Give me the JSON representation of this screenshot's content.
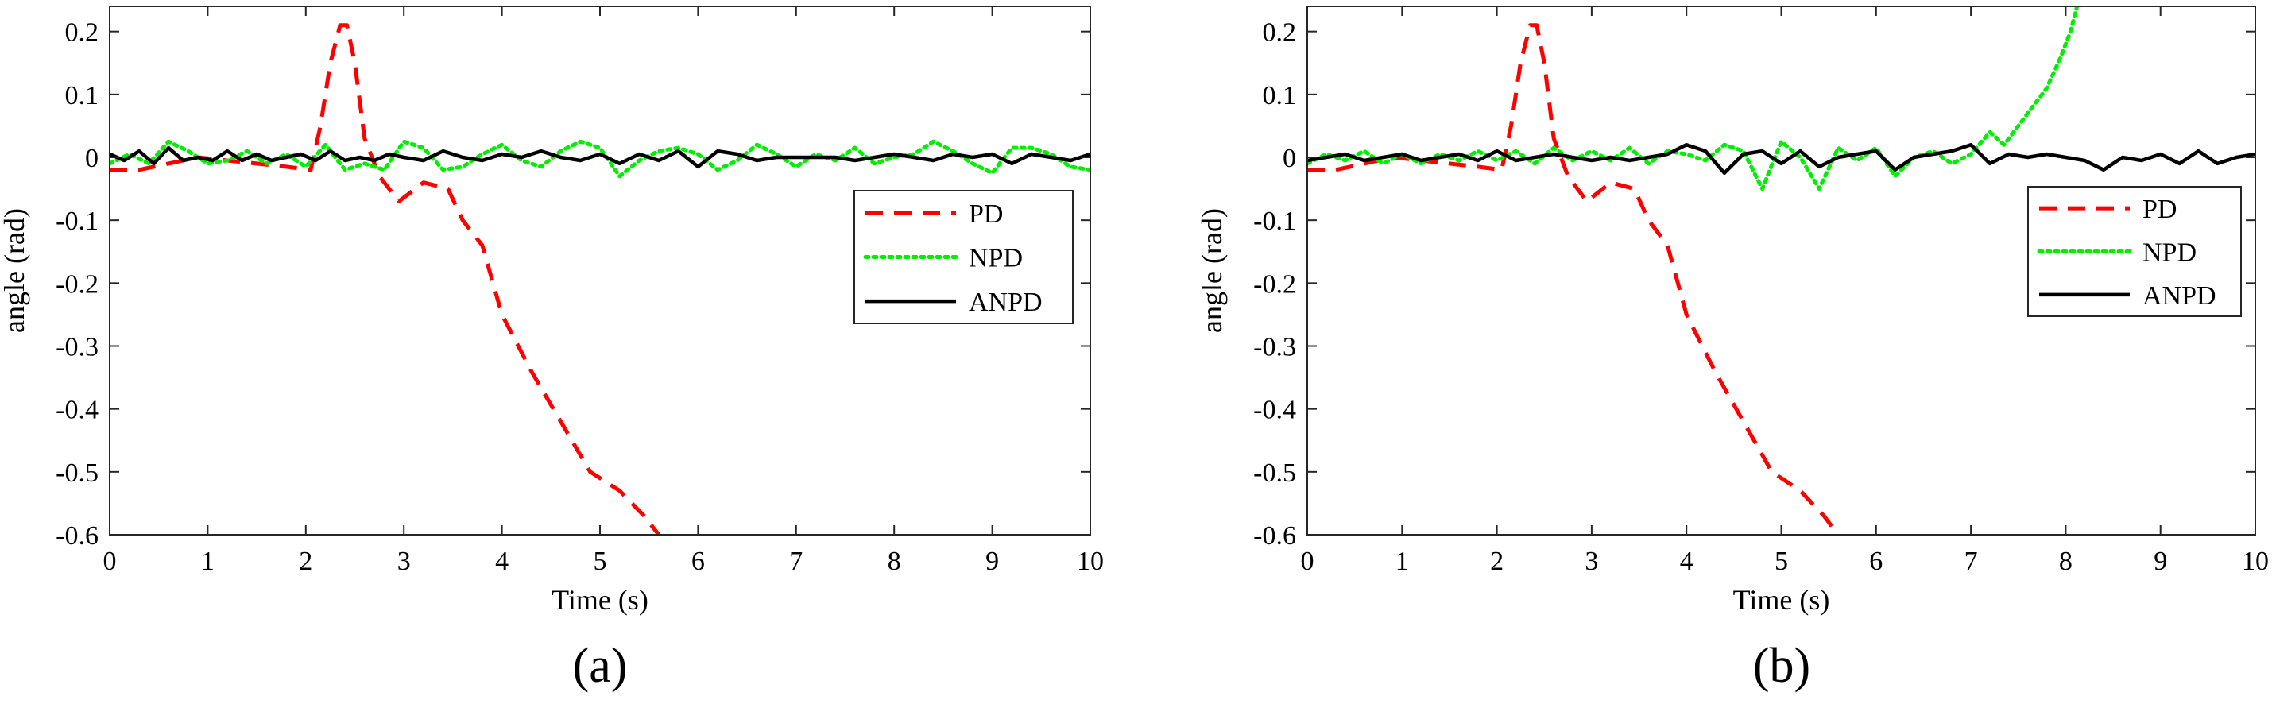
{
  "chart_data": [
    {
      "type": "line",
      "panel_label": "(a)",
      "xlabel": "Time (s)",
      "ylabel": "angle (rad)",
      "xlim": [
        0,
        10
      ],
      "ylim": [
        -0.6,
        0.24
      ],
      "xticks": [
        "0",
        "1",
        "2",
        "3",
        "4",
        "5",
        "6",
        "7",
        "8",
        "9",
        "10"
      ],
      "yticks": [
        "0.2",
        "0.1",
        "0",
        "-0.1",
        "-0.2",
        "-0.3",
        "-0.4",
        "-0.5",
        "-0.6"
      ],
      "grid": false,
      "legend_position": "right",
      "series": [
        {
          "name": "PD",
          "color": "#ff0000",
          "style": "dashed",
          "x": [
            0,
            0.3,
            0.6,
            0.9,
            1.2,
            1.5,
            1.8,
            2.05,
            2.15,
            2.25,
            2.35,
            2.42,
            2.5,
            2.6,
            2.75,
            2.95,
            3.2,
            3.45,
            3.6,
            3.8,
            4.0,
            4.3,
            4.6,
            4.9,
            5.2,
            5.45,
            5.6
          ],
          "y": [
            -0.02,
            -0.02,
            -0.01,
            0,
            -0.005,
            -0.01,
            -0.015,
            -0.02,
            0.05,
            0.15,
            0.21,
            0.21,
            0.15,
            0.03,
            -0.03,
            -0.07,
            -0.04,
            -0.05,
            -0.1,
            -0.14,
            -0.25,
            -0.34,
            -0.42,
            -0.5,
            -0.53,
            -0.57,
            -0.6
          ]
        },
        {
          "name": "NPD",
          "color": "#00ee00",
          "style": "dotted",
          "x": [
            0,
            0.2,
            0.4,
            0.6,
            0.8,
            1.0,
            1.2,
            1.4,
            1.6,
            1.8,
            2.0,
            2.2,
            2.4,
            2.6,
            2.8,
            3.0,
            3.2,
            3.4,
            3.6,
            3.8,
            4.0,
            4.2,
            4.4,
            4.6,
            4.8,
            5.0,
            5.2,
            5.4,
            5.6,
            5.8,
            6.0,
            6.2,
            6.4,
            6.6,
            6.8,
            7.0,
            7.2,
            7.4,
            7.6,
            7.8,
            8.0,
            8.2,
            8.4,
            8.6,
            8.8,
            9.0,
            9.2,
            9.4,
            9.6,
            9.8,
            10.0
          ],
          "y": [
            -0.01,
            0.005,
            -0.01,
            0.025,
            0.01,
            -0.01,
            -0.005,
            0.01,
            -0.01,
            0.005,
            -0.015,
            0.02,
            -0.02,
            -0.01,
            -0.02,
            0.025,
            0.015,
            -0.02,
            -0.015,
            0.005,
            0.02,
            -0.005,
            -0.015,
            0.01,
            0.025,
            0.015,
            -0.03,
            -0.005,
            0.01,
            0.015,
            0.005,
            -0.02,
            -0.005,
            0.02,
            0.005,
            -0.015,
            0.005,
            -0.005,
            0.015,
            -0.01,
            0.0,
            0.005,
            0.025,
            0.01,
            -0.01,
            -0.025,
            0.015,
            0.015,
            0.005,
            -0.015,
            -0.02
          ]
        },
        {
          "name": "ANPD",
          "color": "#000000",
          "style": "solid",
          "x": [
            0,
            0.15,
            0.3,
            0.45,
            0.6,
            0.75,
            0.9,
            1.05,
            1.2,
            1.35,
            1.5,
            1.65,
            1.8,
            1.95,
            2.1,
            2.25,
            2.4,
            2.55,
            2.7,
            2.85,
            3.0,
            3.2,
            3.4,
            3.6,
            3.8,
            4.0,
            4.2,
            4.4,
            4.6,
            4.8,
            5.0,
            5.2,
            5.4,
            5.6,
            5.8,
            6.0,
            6.2,
            6.4,
            6.6,
            6.8,
            7.0,
            7.2,
            7.4,
            7.6,
            7.8,
            8.0,
            8.2,
            8.4,
            8.6,
            8.8,
            9.0,
            9.2,
            9.4,
            9.6,
            9.8,
            10.0
          ],
          "y": [
            0.005,
            -0.005,
            0.01,
            -0.01,
            0.015,
            -0.005,
            0.0,
            -0.005,
            0.01,
            -0.005,
            0.005,
            -0.005,
            0.0,
            0.005,
            -0.005,
            0.01,
            -0.005,
            0.0,
            -0.005,
            0.005,
            0.0,
            -0.005,
            0.01,
            0.0,
            -0.005,
            0.005,
            0.0,
            0.01,
            0.0,
            -0.005,
            0.005,
            -0.01,
            0.005,
            -0.005,
            0.01,
            -0.015,
            0.01,
            0.005,
            -0.005,
            0.0,
            0.0,
            0.0,
            0.0,
            -0.005,
            0.0,
            0.005,
            0.0,
            -0.005,
            0.005,
            0.0,
            0.005,
            -0.01,
            0.005,
            0.0,
            -0.005,
            0.005
          ]
        }
      ]
    },
    {
      "type": "line",
      "panel_label": "(b)",
      "xlabel": "Time (s)",
      "ylabel": "angle (rad)",
      "xlim": [
        0,
        10
      ],
      "ylim": [
        -0.6,
        0.24
      ],
      "xticks": [
        "0",
        "1",
        "2",
        "3",
        "4",
        "5",
        "6",
        "7",
        "8",
        "9",
        "10"
      ],
      "yticks": [
        "0.2",
        "0.1",
        "0",
        "-0.1",
        "-0.2",
        "-0.3",
        "-0.4",
        "-0.5",
        "-0.6"
      ],
      "grid": false,
      "legend_position": "right",
      "series": [
        {
          "name": "PD",
          "color": "#ff0000",
          "style": "dashed",
          "x": [
            0,
            0.3,
            0.6,
            0.9,
            1.2,
            1.5,
            1.8,
            2.05,
            2.15,
            2.25,
            2.35,
            2.42,
            2.5,
            2.6,
            2.75,
            2.95,
            3.2,
            3.45,
            3.6,
            3.8,
            4.0,
            4.3,
            4.6,
            4.9,
            5.2,
            5.45,
            5.6
          ],
          "y": [
            -0.02,
            -0.02,
            -0.01,
            0,
            -0.005,
            -0.01,
            -0.015,
            -0.02,
            0.05,
            0.15,
            0.21,
            0.21,
            0.15,
            0.03,
            -0.03,
            -0.07,
            -0.04,
            -0.05,
            -0.1,
            -0.14,
            -0.25,
            -0.34,
            -0.42,
            -0.5,
            -0.53,
            -0.57,
            -0.6
          ]
        },
        {
          "name": "NPD",
          "color": "#00ee00",
          "style": "dotted",
          "x": [
            0,
            0.2,
            0.4,
            0.6,
            0.8,
            1.0,
            1.2,
            1.4,
            1.6,
            1.8,
            2.0,
            2.2,
            2.4,
            2.6,
            2.8,
            3.0,
            3.2,
            3.4,
            3.6,
            3.8,
            4.0,
            4.2,
            4.4,
            4.6,
            4.8,
            5.0,
            5.2,
            5.4,
            5.6,
            5.8,
            6.0,
            6.2,
            6.4,
            6.6,
            6.8,
            7.0,
            7.2,
            7.35,
            7.5,
            7.65,
            7.8,
            7.95,
            8.05,
            8.12
          ],
          "y": [
            -0.01,
            0.005,
            -0.005,
            0.01,
            -0.01,
            0.005,
            -0.01,
            0.005,
            -0.005,
            0.01,
            -0.005,
            0.01,
            -0.01,
            0.015,
            -0.005,
            0.01,
            -0.005,
            0.015,
            -0.01,
            0.01,
            0.005,
            -0.005,
            0.02,
            0.01,
            -0.05,
            0.025,
            0.0,
            -0.05,
            0.015,
            -0.005,
            0.015,
            -0.03,
            0.0,
            0.01,
            -0.01,
            0.005,
            0.04,
            0.02,
            0.05,
            0.08,
            0.11,
            0.16,
            0.2,
            0.24
          ]
        },
        {
          "name": "ANPD",
          "color": "#000000",
          "style": "solid",
          "x": [
            0,
            0.2,
            0.4,
            0.6,
            0.8,
            1.0,
            1.2,
            1.4,
            1.6,
            1.8,
            2.0,
            2.2,
            2.4,
            2.6,
            2.8,
            3.0,
            3.2,
            3.4,
            3.6,
            3.8,
            4.0,
            4.2,
            4.4,
            4.6,
            4.8,
            5.0,
            5.2,
            5.4,
            5.6,
            5.8,
            6.0,
            6.2,
            6.4,
            6.6,
            6.8,
            7.0,
            7.2,
            7.4,
            7.6,
            7.8,
            8.0,
            8.2,
            8.4,
            8.6,
            8.8,
            9.0,
            9.2,
            9.4,
            9.6,
            9.8,
            10.0
          ],
          "y": [
            -0.005,
            0.0,
            0.005,
            -0.005,
            0.0,
            0.005,
            -0.005,
            0.0,
            0.005,
            -0.005,
            0.01,
            -0.005,
            0.0,
            0.005,
            0.0,
            -0.005,
            0.0,
            -0.005,
            0.0,
            0.005,
            0.02,
            0.01,
            -0.025,
            0.005,
            0.01,
            -0.01,
            0.01,
            -0.015,
            0.0,
            0.005,
            0.01,
            -0.02,
            0.0,
            0.005,
            0.01,
            0.02,
            -0.01,
            0.005,
            0.0,
            0.005,
            0.0,
            -0.005,
            -0.02,
            0.0,
            -0.005,
            0.005,
            -0.01,
            0.01,
            -0.01,
            0.0,
            0.005
          ]
        }
      ]
    }
  ]
}
